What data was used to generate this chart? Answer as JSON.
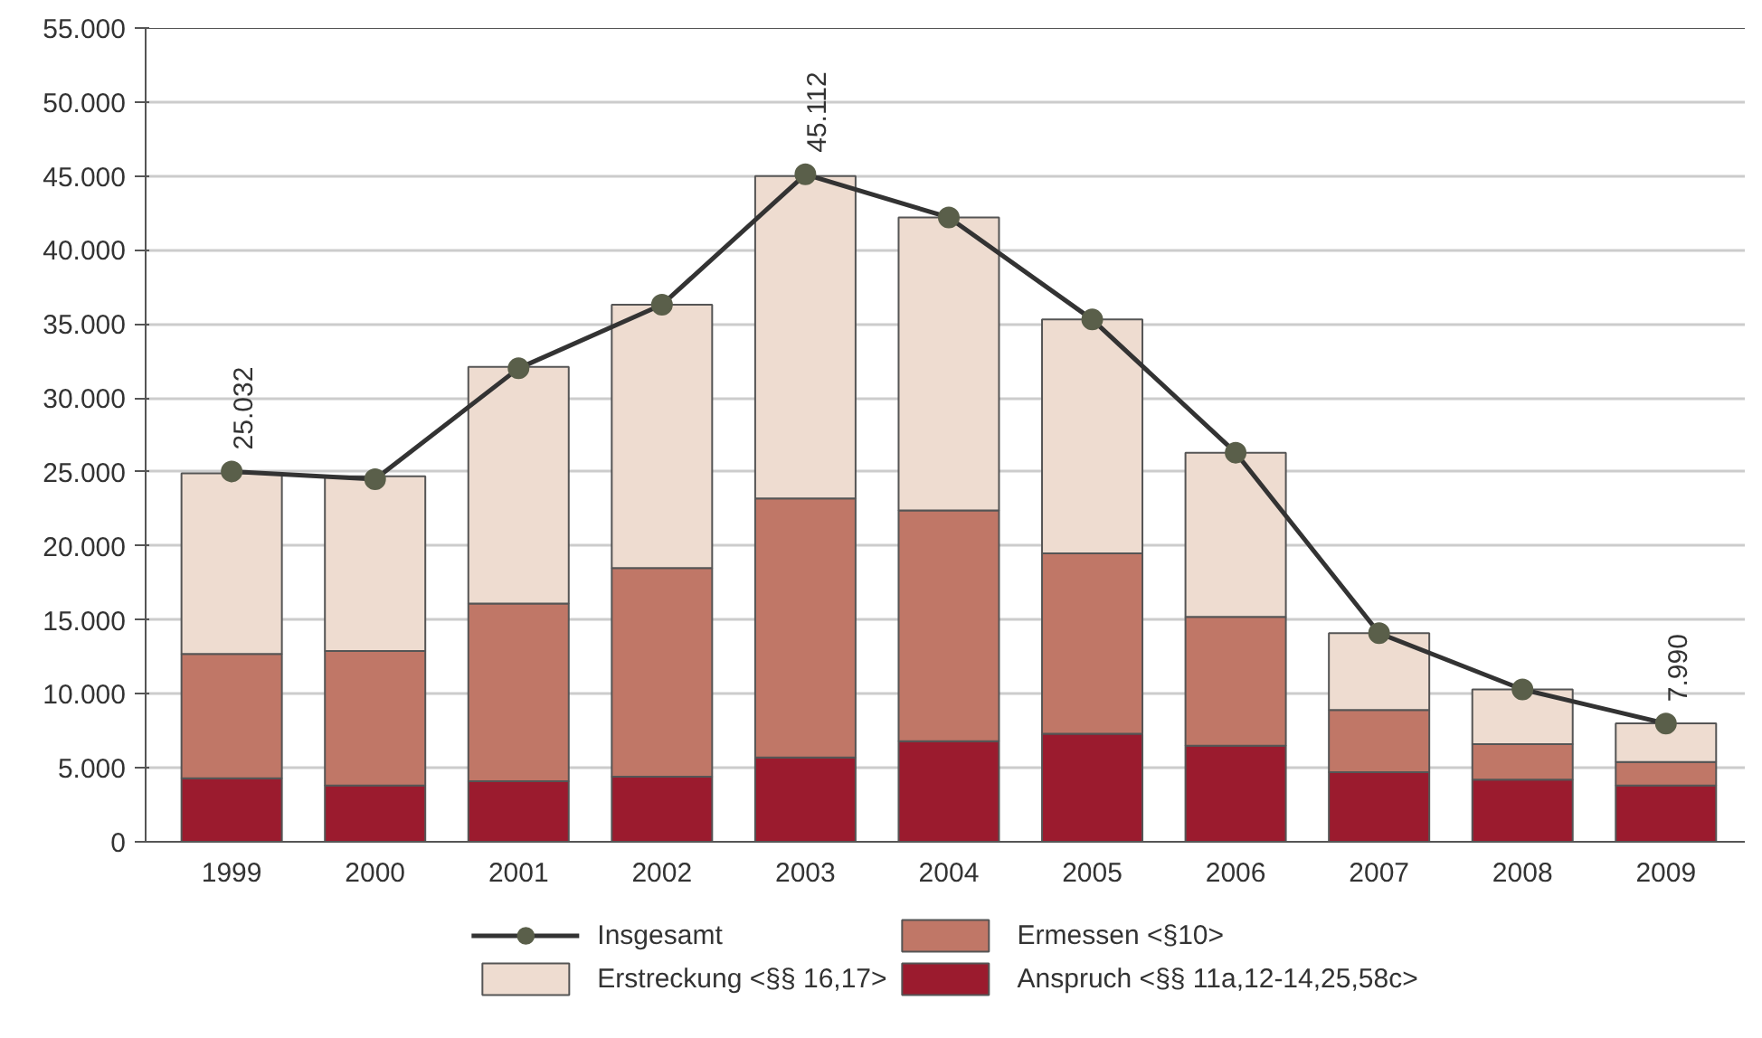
{
  "chart_data": {
    "type": "bar",
    "stacked": true,
    "categories": [
      "1999",
      "2000",
      "2001",
      "2002",
      "2003",
      "2004",
      "2005",
      "2006",
      "2007",
      "2008",
      "2009"
    ],
    "series": [
      {
        "name": "Anspruch <§§ 11a,12-14,25,58c>",
        "color": "#9b1b2e",
        "values": [
          4300,
          3800,
          4100,
          4400,
          5700,
          6800,
          7300,
          6500,
          4700,
          4200,
          3800
        ]
      },
      {
        "name": "Ermessen <§10>",
        "color": "#c07767",
        "values": [
          8400,
          9100,
          12000,
          14100,
          17500,
          15600,
          12200,
          8700,
          4200,
          2400,
          1600
        ]
      },
      {
        "name": "Erstreckung <§§ 16,17>",
        "color": "#eedcd0",
        "values": [
          12200,
          11800,
          16000,
          17800,
          21800,
          19800,
          15800,
          11100,
          5200,
          3700,
          2600
        ]
      },
      {
        "name": "Insgesamt",
        "type": "line",
        "color": "#333333",
        "marker": "circle",
        "values": [
          25032,
          24500,
          32000,
          36300,
          45112,
          42200,
          35300,
          26300,
          14100,
          10300,
          7990
        ],
        "value_labels": [
          "25.032",
          null,
          null,
          null,
          "45.112",
          null,
          null,
          null,
          null,
          null,
          "7.990"
        ]
      }
    ],
    "ylim": [
      0,
      55000
    ],
    "yticks": [
      {
        "value": 0,
        "label": "0"
      },
      {
        "value": 5000,
        "label": "5.000"
      },
      {
        "value": 10000,
        "label": "10.000"
      },
      {
        "value": 15000,
        "label": "15.000"
      },
      {
        "value": 20000,
        "label": "20.000"
      },
      {
        "value": 25000,
        "label": "25.000"
      },
      {
        "value": 30000,
        "label": "30.000"
      },
      {
        "value": 35000,
        "label": "35.000"
      },
      {
        "value": 40000,
        "label": "40.000"
      },
      {
        "value": 45000,
        "label": "45.000"
      },
      {
        "value": 50000,
        "label": "50.000"
      },
      {
        "value": 55000,
        "label": "55.000"
      }
    ],
    "grid": "y",
    "legend": "bottom"
  }
}
